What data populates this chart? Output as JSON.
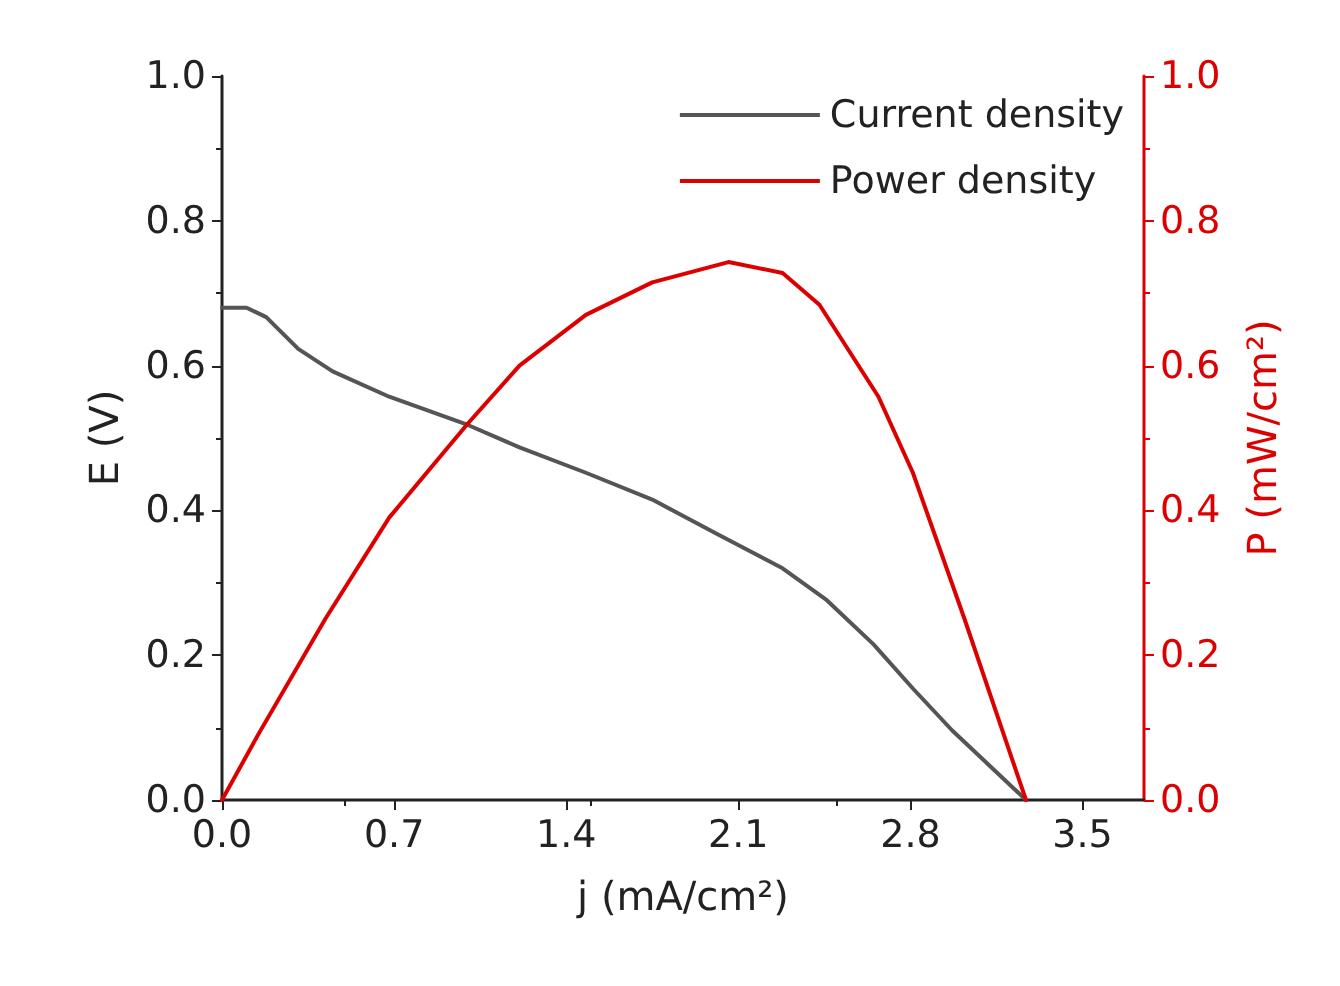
{
  "chart_data": {
    "type": "line",
    "xlabel": "j (mA/cm²)",
    "ylabel": "E (V)",
    "y2label": "P (mW/cm²)",
    "xlim": [
      0,
      3.75
    ],
    "xticks": [
      {
        "value": 0,
        "label": "0.0"
      },
      0.7,
      1.4,
      2.1,
      2.8,
      3.5
    ],
    "ylim": [
      0,
      1
    ],
    "yticks": [
      {
        "value": 0,
        "label": "0.0"
      },
      0.2,
      0.4,
      0.6,
      0.8,
      {
        "value": 1,
        "label": "1.0"
      }
    ],
    "y2lim": [
      0,
      1
    ],
    "y2ticks": [
      {
        "value": 0,
        "label": "0.0"
      },
      0.2,
      0.4,
      0.6,
      0.8,
      {
        "value": 1,
        "label": "1.0"
      }
    ],
    "grid": false,
    "legend": "top right",
    "marker": "none",
    "line_style": "solid",
    "series": [
      {
        "name": "Current density",
        "color": "#555555",
        "x": [
          0,
          0.1,
          0.18,
          0.31,
          0.45,
          0.68,
          1.0,
          1.21,
          1.48,
          1.75,
          2.01,
          2.28,
          2.46,
          2.65,
          2.81,
          2.97,
          3.12,
          3.27
        ],
        "values": [
          0.68,
          0.68,
          0.667,
          0.623,
          0.592,
          0.557,
          0.518,
          0.487,
          0.452,
          0.415,
          0.368,
          0.32,
          0.276,
          0.215,
          0.154,
          0.096,
          0.048,
          0
        ]
      },
      {
        "name": "Power density",
        "color": "#dd0000",
        "axis": "y2",
        "x": [
          0,
          0.15,
          0.42,
          0.68,
          1.0,
          1.21,
          1.48,
          1.75,
          2.06,
          2.28,
          2.43,
          2.67,
          2.81,
          3.02,
          3.27
        ],
        "values": [
          0,
          0.092,
          0.25,
          0.39,
          0.52,
          0.6,
          0.67,
          0.715,
          0.743,
          0.728,
          0.684,
          0.557,
          0.452,
          0.25,
          0
        ]
      }
    ]
  }
}
